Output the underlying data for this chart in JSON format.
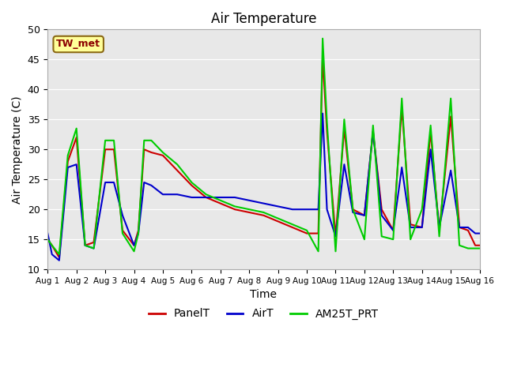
{
  "title": "Air Temperature",
  "xlabel": "Time",
  "ylabel": "Air Temperature (C)",
  "ylim": [
    10,
    50
  ],
  "station_label": "TW_met",
  "bg_color": "#e8e8e8",
  "legend_entries": [
    "PanelT",
    "AirT",
    "AM25T_PRT"
  ],
  "line_colors": [
    "#cc0000",
    "#0000cc",
    "#00cc00"
  ],
  "xtick_labels": [
    "Aug 1",
    "Aug 2",
    "Aug 3",
    "Aug 4",
    "Aug 5",
    "Aug 6",
    "Aug 7",
    "Aug 8",
    "Aug 9",
    "Aug 10",
    "Aug 11",
    "Aug 12",
    "Aug 13",
    "Aug 14",
    "Aug 15",
    "Aug 16"
  ],
  "panelT_x": [
    0.0,
    0.15,
    0.4,
    0.7,
    1.0,
    1.3,
    1.6,
    2.0,
    2.3,
    2.6,
    3.0,
    3.15,
    3.35,
    3.6,
    4.0,
    4.5,
    5.0,
    5.5,
    6.0,
    6.5,
    7.0,
    7.5,
    8.0,
    8.5,
    9.0,
    9.4,
    9.55,
    9.7,
    10.0,
    10.3,
    10.6,
    11.0,
    11.3,
    11.6,
    12.0,
    12.3,
    12.6,
    13.0,
    13.3,
    13.6,
    14.0,
    14.3,
    14.6,
    14.85,
    15.0
  ],
  "panelT_y": [
    15.0,
    14.0,
    12.0,
    28.0,
    32.0,
    14.0,
    14.5,
    30.0,
    30.0,
    16.5,
    14.0,
    16.5,
    30.0,
    29.5,
    29.0,
    26.5,
    24.0,
    22.0,
    21.0,
    20.0,
    19.5,
    19.0,
    18.0,
    17.0,
    16.0,
    16.0,
    45.5,
    33.0,
    15.5,
    33.5,
    20.0,
    19.0,
    33.0,
    20.0,
    16.5,
    37.0,
    17.5,
    17.0,
    33.0,
    16.5,
    35.5,
    17.0,
    16.5,
    14.0,
    14.0
  ],
  "airT_x": [
    0.0,
    0.15,
    0.4,
    0.7,
    1.0,
    1.3,
    1.6,
    2.0,
    2.3,
    2.6,
    3.0,
    3.15,
    3.35,
    3.6,
    4.0,
    4.5,
    5.0,
    5.5,
    6.0,
    6.5,
    7.0,
    7.5,
    8.0,
    8.5,
    9.0,
    9.4,
    9.55,
    9.7,
    10.0,
    10.3,
    10.6,
    11.0,
    11.3,
    11.6,
    12.0,
    12.3,
    12.6,
    13.0,
    13.3,
    13.6,
    14.0,
    14.3,
    14.6,
    14.85,
    15.0
  ],
  "airT_y": [
    16.0,
    12.5,
    11.5,
    27.0,
    27.5,
    14.0,
    13.5,
    24.5,
    24.5,
    19.0,
    14.0,
    16.0,
    24.5,
    24.0,
    22.5,
    22.5,
    22.0,
    22.0,
    22.0,
    22.0,
    21.5,
    21.0,
    20.5,
    20.0,
    20.0,
    20.0,
    36.0,
    20.0,
    15.5,
    27.5,
    19.5,
    19.0,
    33.0,
    19.0,
    16.5,
    27.0,
    17.0,
    17.0,
    30.0,
    17.0,
    26.5,
    17.0,
    17.0,
    16.0,
    16.0
  ],
  "am25T_x": [
    0.0,
    0.15,
    0.4,
    0.7,
    1.0,
    1.3,
    1.6,
    2.0,
    2.3,
    2.6,
    3.0,
    3.15,
    3.35,
    3.6,
    4.0,
    4.5,
    5.0,
    5.5,
    6.0,
    6.5,
    7.0,
    7.5,
    8.0,
    8.5,
    9.0,
    9.4,
    9.55,
    9.7,
    10.0,
    10.3,
    10.6,
    11.0,
    11.3,
    11.6,
    12.0,
    12.3,
    12.6,
    13.0,
    13.3,
    13.6,
    14.0,
    14.3,
    14.6,
    14.85,
    15.0
  ],
  "am25T_y": [
    15.0,
    14.0,
    12.5,
    29.0,
    33.5,
    14.0,
    13.5,
    31.5,
    31.5,
    16.0,
    13.0,
    16.0,
    31.5,
    31.5,
    29.5,
    27.5,
    24.5,
    22.5,
    21.5,
    20.5,
    20.0,
    19.5,
    18.5,
    17.5,
    16.5,
    13.0,
    48.5,
    34.5,
    13.0,
    35.0,
    20.0,
    15.0,
    34.0,
    15.5,
    15.0,
    38.5,
    15.0,
    20.0,
    34.0,
    15.5,
    38.5,
    14.0,
    13.5,
    13.5,
    13.5
  ]
}
